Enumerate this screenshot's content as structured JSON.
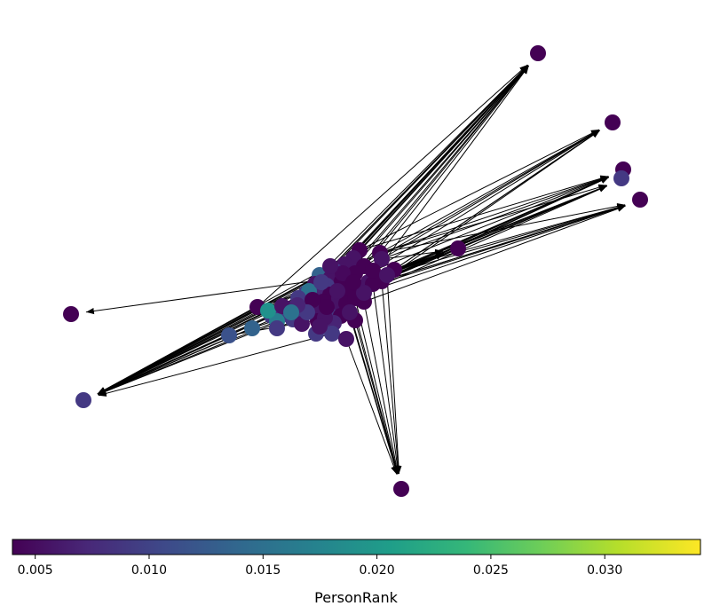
{
  "colorbar": {
    "label": "PersonRank",
    "range": [
      0.004,
      0.0342
    ],
    "ticks": [
      {
        "value": 0.005,
        "label": "0.005"
      },
      {
        "value": 0.01,
        "label": "0.010"
      },
      {
        "value": 0.015,
        "label": "0.015"
      },
      {
        "value": 0.02,
        "label": "0.020"
      },
      {
        "value": 0.025,
        "label": "0.025"
      },
      {
        "value": 0.03,
        "label": "0.030"
      }
    ],
    "colormap": "viridis"
  },
  "colors": {
    "edge": "#000000",
    "viridis_stops": [
      "#440154",
      "#482878",
      "#3e4989",
      "#31688e",
      "#26828e",
      "#1f9e89",
      "#35b779",
      "#6ece58",
      "#b5de2b",
      "#fde725"
    ]
  },
  "graph": {
    "directed": true,
    "node_count": 80,
    "edge_count": 150
  }
}
